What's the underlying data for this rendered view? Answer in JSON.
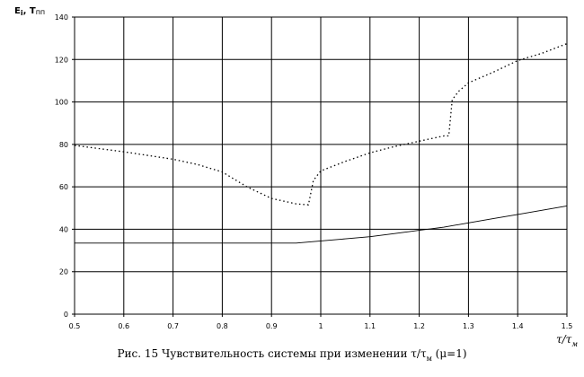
{
  "chart_data": {
    "type": "line",
    "ylabel": "E",
    "ylabel_sub": "i",
    "ylabel_sep": ", T",
    "ylabel_sub2": "пп",
    "xlabel_base": "τ/τ",
    "xlabel_sub": "м",
    "caption": "Рис. 15 Чувствительность системы при изменении τ/τ",
    "caption_sub": "м",
    "caption_tail": " (μ=1)",
    "xlim": [
      0.5,
      1.5
    ],
    "ylim": [
      0,
      140
    ],
    "x_ticks": [
      "0.5",
      "0.6",
      "0.7",
      "0.8",
      "0.9",
      "1",
      "1.1",
      "1.2",
      "1.3",
      "1.4",
      "1.5"
    ],
    "y_ticks": [
      "0",
      "20",
      "40",
      "60",
      "80",
      "100",
      "120",
      "140"
    ],
    "grid": true,
    "series": [
      {
        "style": "dotted",
        "points": [
          [
            0.5,
            79.5
          ],
          [
            0.6,
            76.5
          ],
          [
            0.7,
            73
          ],
          [
            0.75,
            70.5
          ],
          [
            0.8,
            67
          ],
          [
            0.85,
            60
          ],
          [
            0.9,
            54.5
          ],
          [
            0.95,
            52
          ],
          [
            0.975,
            51.5
          ],
          [
            0.985,
            63
          ],
          [
            1.0,
            67.5
          ],
          [
            1.05,
            72
          ],
          [
            1.1,
            76
          ],
          [
            1.15,
            79
          ],
          [
            1.2,
            81.5
          ],
          [
            1.25,
            84
          ],
          [
            1.26,
            84
          ],
          [
            1.267,
            101
          ],
          [
            1.28,
            105
          ],
          [
            1.3,
            109
          ],
          [
            1.35,
            114
          ],
          [
            1.4,
            119.5
          ],
          [
            1.45,
            123
          ],
          [
            1.5,
            127.5
          ]
        ]
      },
      {
        "style": "solid",
        "points": [
          [
            0.5,
            33.5
          ],
          [
            0.9,
            33.5
          ],
          [
            0.95,
            33.5
          ],
          [
            1.0,
            34.5
          ],
          [
            1.05,
            35.5
          ],
          [
            1.1,
            36.5
          ],
          [
            1.15,
            38
          ],
          [
            1.2,
            39.5
          ],
          [
            1.25,
            41
          ],
          [
            1.3,
            43
          ],
          [
            1.35,
            45
          ],
          [
            1.4,
            47
          ],
          [
            1.45,
            49
          ],
          [
            1.5,
            51
          ]
        ]
      }
    ]
  }
}
